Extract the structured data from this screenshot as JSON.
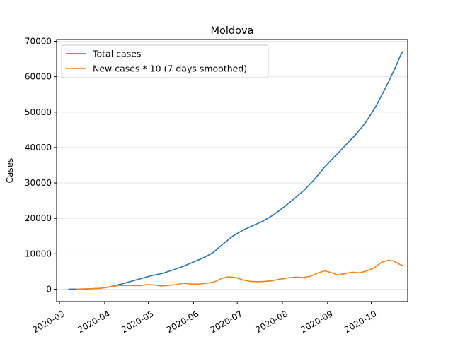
{
  "chart_data": {
    "type": "line",
    "title": "Moldova",
    "xlabel": "",
    "ylabel": "Cases",
    "xlim": [
      "2020-02-28",
      "2020-10-26"
    ],
    "ylim": [
      -3500,
      70500
    ],
    "grid": "y",
    "legend_position": "top-left",
    "y_ticks": [
      0,
      10000,
      20000,
      30000,
      40000,
      50000,
      60000,
      70000
    ],
    "y_tick_labels": [
      "0",
      "10000",
      "20000",
      "30000",
      "40000",
      "50000",
      "60000",
      "70000"
    ],
    "x_ticks": [
      "2020-03-01",
      "2020-04-01",
      "2020-05-01",
      "2020-06-01",
      "2020-07-01",
      "2020-08-01",
      "2020-09-01",
      "2020-10-01"
    ],
    "x_tick_labels": [
      "2020-03",
      "2020-04",
      "2020-05",
      "2020-06",
      "2020-07",
      "2020-08",
      "2020-09",
      "2020-10"
    ],
    "series": [
      {
        "name": "Total cases",
        "color": "#1f77b4",
        "points": [
          [
            "2020-03-07",
            0
          ],
          [
            "2020-03-15",
            30
          ],
          [
            "2020-03-22",
            100
          ],
          [
            "2020-03-29",
            260
          ],
          [
            "2020-04-05",
            700
          ],
          [
            "2020-04-12",
            1400
          ],
          [
            "2020-04-19",
            2200
          ],
          [
            "2020-04-26",
            3000
          ],
          [
            "2020-05-03",
            3800
          ],
          [
            "2020-05-10",
            4400
          ],
          [
            "2020-05-17",
            5300
          ],
          [
            "2020-05-24",
            6300
          ],
          [
            "2020-05-31",
            7500
          ],
          [
            "2020-06-07",
            8700
          ],
          [
            "2020-06-14",
            10200
          ],
          [
            "2020-06-21",
            12700
          ],
          [
            "2020-06-28",
            15000
          ],
          [
            "2020-07-05",
            16700
          ],
          [
            "2020-07-12",
            18000
          ],
          [
            "2020-07-19",
            19300
          ],
          [
            "2020-07-26",
            21000
          ],
          [
            "2020-08-02",
            23200
          ],
          [
            "2020-08-09",
            25500
          ],
          [
            "2020-08-16",
            28000
          ],
          [
            "2020-08-23",
            31000
          ],
          [
            "2020-08-30",
            34500
          ],
          [
            "2020-09-06",
            37500
          ],
          [
            "2020-09-13",
            40500
          ],
          [
            "2020-09-20",
            43500
          ],
          [
            "2020-09-27",
            47000
          ],
          [
            "2020-10-04",
            51500
          ],
          [
            "2020-10-11",
            57000
          ],
          [
            "2020-10-18",
            63000
          ],
          [
            "2020-10-21",
            66000
          ],
          [
            "2020-10-23",
            67300
          ]
        ]
      },
      {
        "name": "New cases * 10 (7 days smoothed)",
        "color": "#ff7f0e",
        "points": [
          [
            "2020-03-12",
            0
          ],
          [
            "2020-03-20",
            80
          ],
          [
            "2020-03-27",
            200
          ],
          [
            "2020-04-01",
            400
          ],
          [
            "2020-04-05",
            700
          ],
          [
            "2020-04-10",
            1000
          ],
          [
            "2020-04-15",
            1100
          ],
          [
            "2020-04-20",
            1050
          ],
          [
            "2020-04-25",
            1000
          ],
          [
            "2020-05-01",
            1300
          ],
          [
            "2020-05-05",
            1200
          ],
          [
            "2020-05-10",
            900
          ],
          [
            "2020-05-15",
            1100
          ],
          [
            "2020-05-20",
            1300
          ],
          [
            "2020-05-25",
            1700
          ],
          [
            "2020-05-30",
            1500
          ],
          [
            "2020-06-04",
            1400
          ],
          [
            "2020-06-10",
            1700
          ],
          [
            "2020-06-15",
            2000
          ],
          [
            "2020-06-20",
            3000
          ],
          [
            "2020-06-25",
            3500
          ],
          [
            "2020-06-30",
            3300
          ],
          [
            "2020-07-05",
            2600
          ],
          [
            "2020-07-10",
            2200
          ],
          [
            "2020-07-15",
            2100
          ],
          [
            "2020-07-20",
            2200
          ],
          [
            "2020-07-25",
            2400
          ],
          [
            "2020-07-30",
            2800
          ],
          [
            "2020-08-05",
            3200
          ],
          [
            "2020-08-10",
            3400
          ],
          [
            "2020-08-15",
            3300
          ],
          [
            "2020-08-20",
            3600
          ],
          [
            "2020-08-25",
            4500
          ],
          [
            "2020-08-30",
            5200
          ],
          [
            "2020-09-04",
            4600
          ],
          [
            "2020-09-08",
            4000
          ],
          [
            "2020-09-13",
            4400
          ],
          [
            "2020-09-18",
            4800
          ],
          [
            "2020-09-23",
            4600
          ],
          [
            "2020-09-28",
            5200
          ],
          [
            "2020-10-03",
            6000
          ],
          [
            "2020-10-08",
            7600
          ],
          [
            "2020-10-12",
            8100
          ],
          [
            "2020-10-16",
            8000
          ],
          [
            "2020-10-20",
            7100
          ],
          [
            "2020-10-23",
            6600
          ]
        ]
      }
    ]
  }
}
